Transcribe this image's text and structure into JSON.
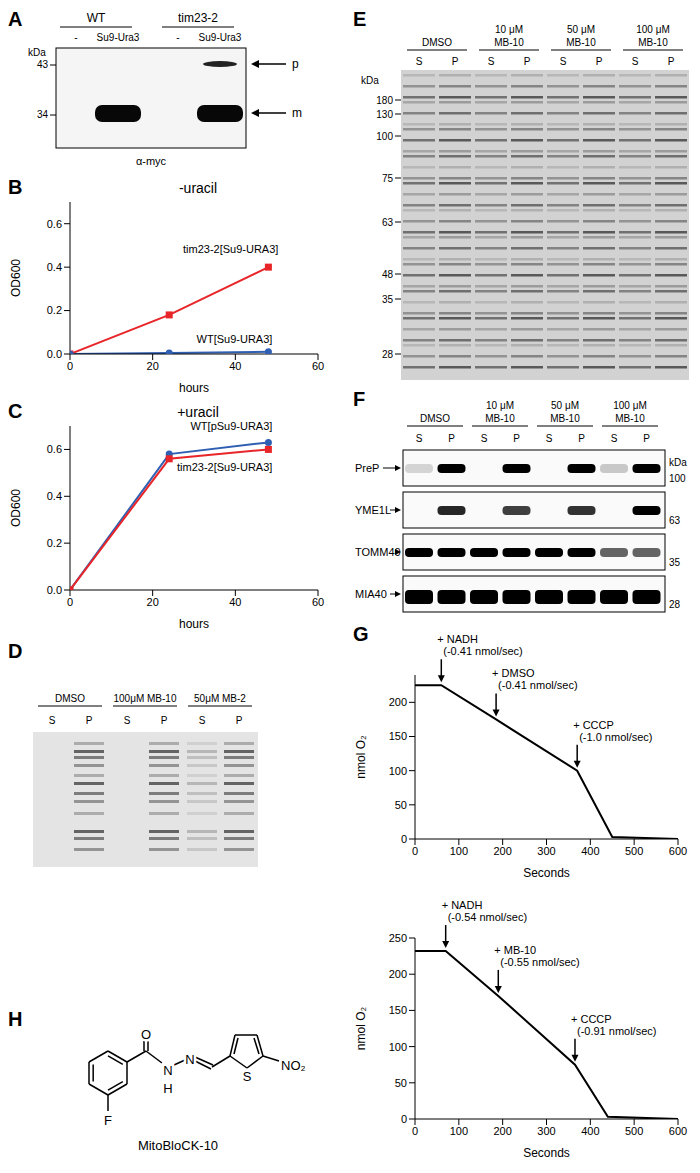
{
  "panel_letters": [
    "A",
    "B",
    "C",
    "D",
    "E",
    "F",
    "G",
    "H"
  ],
  "blot_A": {
    "groups": [
      {
        "label": "WT",
        "lanes": [
          "-",
          "Su9-Ura3"
        ]
      },
      {
        "label": "tim23-2",
        "lanes": [
          "-",
          "Su9-Ura3"
        ]
      }
    ],
    "marker_unit": "kDa",
    "markers": [
      43,
      34
    ],
    "bands": [
      "p",
      "m"
    ],
    "antibody": "α-myc"
  },
  "chart_data": [
    {
      "type": "line",
      "title": "-uracil",
      "x_label": "hours",
      "y_label": "OD600",
      "xlim": [
        0,
        60
      ],
      "xticks": [
        0,
        20,
        40,
        60
      ],
      "ylim": [
        0,
        0.7
      ],
      "yticks": [
        {
          "value": 0,
          "label": "0.0"
        },
        0.2,
        0.4,
        0.6
      ],
      "x": [
        0,
        24,
        48
      ],
      "series": [
        {
          "name": "tim23-2[Su9-URA3]",
          "color": "#e8262a",
          "marker": "square",
          "values": [
            0,
            0.18,
            0.4
          ]
        },
        {
          "name": "WT[Su9-URA3]",
          "color": "#2f5fb3",
          "marker": "circle",
          "values": [
            0,
            0.005,
            0.01
          ]
        }
      ]
    },
    {
      "type": "line",
      "title": "+uracil",
      "x_label": "hours",
      "y_label": "OD600",
      "xlim": [
        0,
        60
      ],
      "xticks": [
        0,
        20,
        40,
        60
      ],
      "ylim": [
        0,
        0.7
      ],
      "yticks": [
        {
          "value": 0,
          "label": "0.0"
        },
        0.2,
        0.4,
        0.6
      ],
      "x": [
        0,
        24,
        48
      ],
      "series": [
        {
          "name": "WT[pSu9-URA3]",
          "color": "#2f5fb3",
          "marker": "circle",
          "values": [
            0,
            0.58,
            0.63
          ]
        },
        {
          "name": "tim23-2[Su9-URA3]",
          "color": "#e8262a",
          "marker": "square",
          "values": [
            0,
            0.56,
            0.6
          ]
        }
      ]
    },
    {
      "type": "line",
      "x_label": "Seconds",
      "y_label": "nmol O₂",
      "xlim": [
        0,
        600
      ],
      "xticks": [
        0,
        100,
        200,
        300,
        400,
        500,
        600
      ],
      "ylim": [
        0,
        240
      ],
      "yticks": [
        0,
        50,
        100,
        150,
        200
      ],
      "x": [
        0,
        60,
        185,
        370,
        450,
        600
      ],
      "values": [
        225,
        225,
        175,
        100,
        3,
        0
      ],
      "color": "#000000",
      "annotations": [
        {
          "x": 60,
          "y": 225,
          "text": "+ NADH",
          "rate": "(-0.41 nmol/sec)"
        },
        {
          "x": 185,
          "y": 175,
          "text": "+ DMSO",
          "rate": "(-0.41 nmol/sec)"
        },
        {
          "x": 370,
          "y": 100,
          "text": "+ CCCP",
          "rate": "(-1.0 nmol/sec)"
        }
      ]
    },
    {
      "type": "line",
      "x_label": "Seconds",
      "y_label": "nmol O₂",
      "xlim": [
        0,
        600
      ],
      "xticks": [
        0,
        100,
        200,
        300,
        400,
        500,
        600
      ],
      "ylim": [
        0,
        250
      ],
      "yticks": [
        0,
        50,
        100,
        150,
        200,
        250
      ],
      "x": [
        0,
        70,
        190,
        365,
        440,
        600
      ],
      "values": [
        232,
        232,
        170,
        75,
        3,
        0
      ],
      "color": "#000000",
      "annotations": [
        {
          "x": 70,
          "y": 232,
          "text": "+ NADH",
          "rate": "(-0.54 nmol/sec)"
        },
        {
          "x": 190,
          "y": 170,
          "text": "+ MB-10",
          "rate": "(-0.55 nmol/sec)"
        },
        {
          "x": 365,
          "y": 75,
          "text": "+ CCCP",
          "rate": "(-0.91 nmol/sec)"
        }
      ]
    }
  ],
  "gel_D": {
    "groups": [
      [
        "DMSO"
      ],
      [
        "100μM MB-10"
      ],
      [
        "50μM MB-2"
      ]
    ],
    "lanes": [
      "S",
      "P"
    ]
  },
  "gel_E": {
    "groups": [
      [
        "DMSO"
      ],
      [
        "10 μM",
        "MB-10"
      ],
      [
        "50 μM",
        "MB-10"
      ],
      [
        "100 μM",
        "MB-10"
      ]
    ],
    "lanes": [
      "S",
      "P"
    ],
    "marker_unit": "kDa",
    "markers": [
      180,
      130,
      100,
      75,
      63,
      48,
      35,
      28
    ]
  },
  "blot_F": {
    "groups": [
      [
        "DMSO"
      ],
      [
        "10 μM",
        "MB-10"
      ],
      [
        "50 μM",
        "MB-10"
      ],
      [
        "100 μM",
        "MB-10"
      ]
    ],
    "lanes": [
      "S",
      "P"
    ],
    "marker_unit": "kDa",
    "rows": [
      {
        "name": "PreP",
        "kda": 100
      },
      {
        "name": "YME1L",
        "kda": 63
      },
      {
        "name": "TOMM40",
        "kda": 35
      },
      {
        "name": "MIA40",
        "kda": 28
      }
    ]
  },
  "structure_H": {
    "name": "MitoBloCK-10",
    "atoms": [
      "O",
      "N",
      "H",
      "N",
      "F",
      "S",
      "NO₂"
    ]
  }
}
